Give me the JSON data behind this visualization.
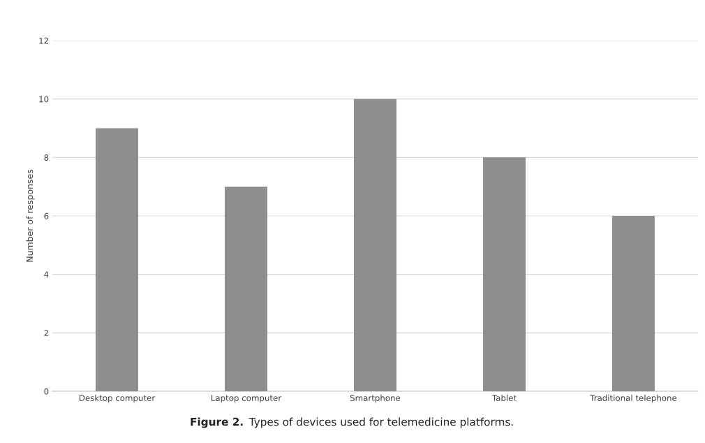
{
  "chart_data": {
    "type": "bar",
    "ylabel": "Number of responses",
    "categories": [
      "Desktop computer",
      "Laptop computer",
      "Smartphone",
      "Tablet",
      "Traditional telephone"
    ],
    "values": [
      9,
      7,
      10,
      8,
      6
    ],
    "color": "#8e8e91",
    "ylim": [
      0,
      12
    ],
    "yticks": [
      0,
      2,
      4,
      6,
      8,
      10,
      12
    ],
    "grid": "y",
    "annotations": [
      "Figure 2.",
      "Types of devices used for telemedicine platforms."
    ]
  }
}
